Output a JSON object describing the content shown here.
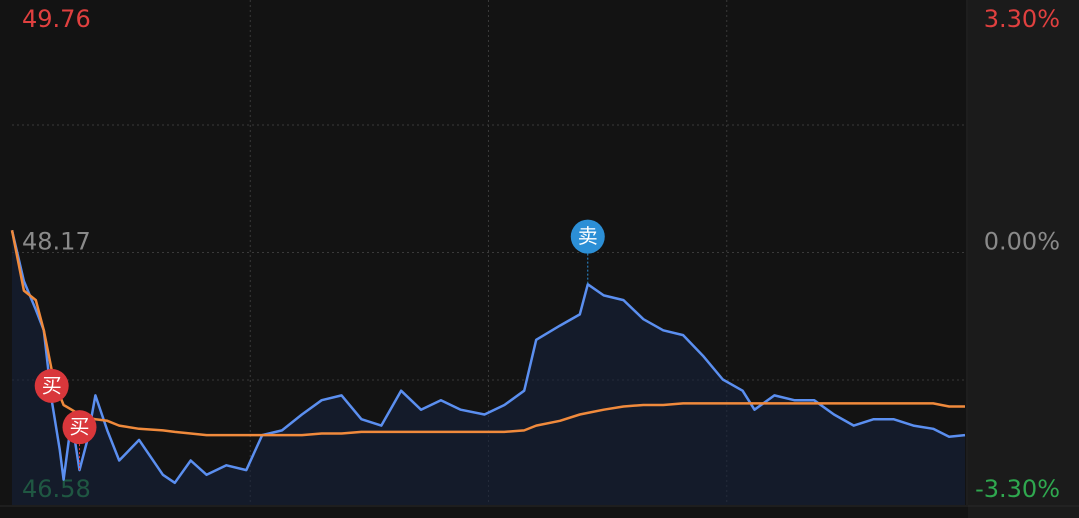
{
  "chart_data": {
    "type": "line",
    "xlim": [
      0,
      240
    ],
    "xticks": [
      60,
      120,
      180
    ],
    "ylim": [
      46.58,
      49.76
    ],
    "yticks": [
      46.58,
      48.17,
      49.76
    ],
    "ytick_colors": [
      "#2fa84f",
      "#8a8a8a",
      "#e0403f"
    ],
    "y2lim": [
      -3.3,
      3.3
    ],
    "y2ticks": [
      {
        "value": -3.3,
        "label": "-3.30%"
      },
      {
        "value": 0,
        "label": "0.00%"
      },
      {
        "value": 3.3,
        "label": "3.30%"
      }
    ],
    "grid": true,
    "x": [
      0,
      3,
      6,
      8,
      10,
      12,
      13,
      15,
      17,
      19,
      21,
      24,
      27,
      32,
      38,
      41,
      45,
      49,
      54,
      59,
      63,
      68,
      73,
      78,
      83,
      88,
      93,
      98,
      103,
      108,
      113,
      119,
      124,
      129,
      132,
      138,
      143,
      145,
      149,
      154,
      159,
      164,
      169,
      174,
      179,
      184,
      187,
      192,
      197,
      202,
      207,
      212,
      217,
      222,
      227,
      232,
      236,
      240
    ],
    "series": [
      {
        "color": "#5b8ff0",
        "values": [
          48.31,
          47.99,
          47.81,
          47.68,
          47.24,
          46.93,
          46.74,
          47.12,
          46.8,
          46.99,
          47.27,
          47.05,
          46.86,
          46.99,
          46.77,
          46.72,
          46.86,
          46.77,
          46.83,
          46.8,
          47.02,
          47.05,
          47.15,
          47.24,
          47.27,
          47.12,
          47.08,
          47.3,
          47.18,
          47.24,
          47.18,
          47.15,
          47.21,
          47.3,
          47.62,
          47.71,
          47.78,
          47.97,
          47.9,
          47.87,
          47.75,
          47.68,
          47.65,
          47.52,
          47.37,
          47.3,
          47.18,
          47.27,
          47.24,
          47.24,
          47.15,
          47.08,
          47.12,
          47.12,
          47.08,
          47.06,
          47.01,
          47.02
        ]
      },
      {
        "color": "#f08a3c",
        "values": [
          48.31,
          47.93,
          47.87,
          47.68,
          47.43,
          47.27,
          47.21,
          47.18,
          47.15,
          47.13,
          47.12,
          47.11,
          47.08,
          47.06,
          47.05,
          47.04,
          47.03,
          47.02,
          47.02,
          47.02,
          47.02,
          47.02,
          47.02,
          47.03,
          47.03,
          47.04,
          47.04,
          47.04,
          47.04,
          47.04,
          47.04,
          47.04,
          47.04,
          47.05,
          47.08,
          47.11,
          47.15,
          47.16,
          47.18,
          47.2,
          47.21,
          47.21,
          47.22,
          47.22,
          47.22,
          47.22,
          47.22,
          47.22,
          47.22,
          47.22,
          47.22,
          47.22,
          47.22,
          47.22,
          47.22,
          47.22,
          47.2,
          47.2
        ]
      }
    ],
    "signals": [
      {
        "label": "买",
        "x": 10,
        "y": 47.33,
        "color": "#d9373b"
      },
      {
        "label": "买",
        "x": 17,
        "y": 47.07,
        "color": "#d9373b"
      },
      {
        "label": "卖",
        "x": 145,
        "y": 48.27,
        "color": "#2c8fd6"
      }
    ]
  }
}
